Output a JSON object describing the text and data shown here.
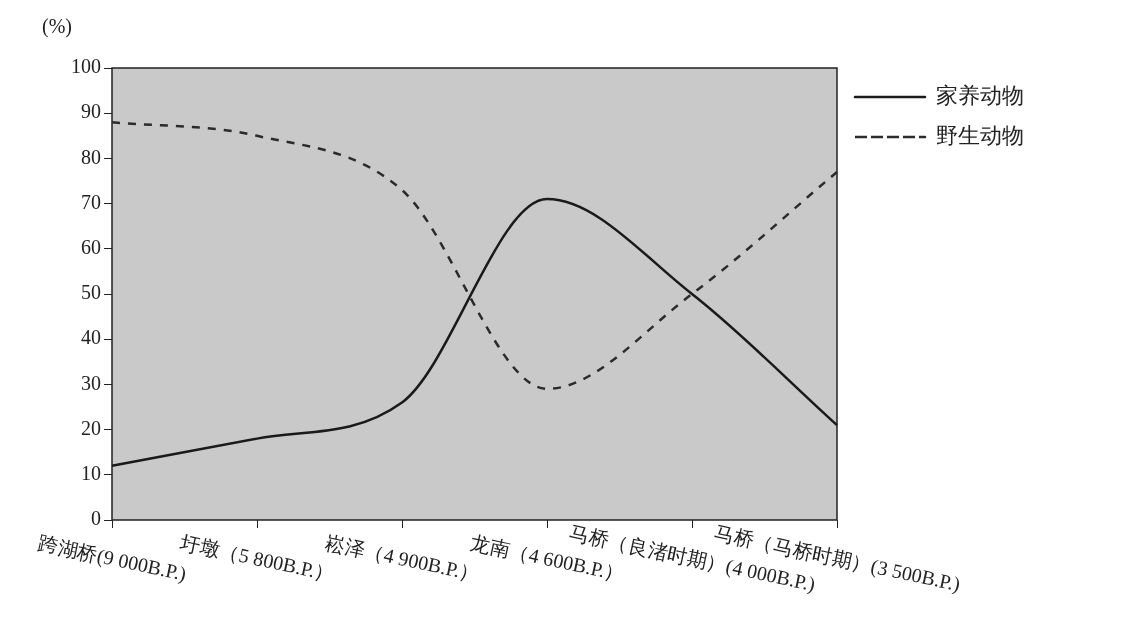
{
  "chart_data": {
    "type": "line",
    "ylabel": "(%)",
    "categories": [
      "跨湖桥(9 000B.P.)",
      "圩墩（5 800B.P.）",
      "崧泽（4 900B.P.）",
      "龙南（4 600B.P.）",
      "马桥（良渚时期）(4 000B.P.)",
      "马桥（马桥时期）(3 500B.P.)"
    ],
    "series": [
      {
        "name": "家养动物",
        "color": "#1a1a1a",
        "line_style": "solid",
        "values": [
          12,
          18,
          26,
          71,
          50,
          21
        ]
      },
      {
        "name": "野生动物",
        "color": "#2b2b2b",
        "line_style": "dashed",
        "values": [
          88,
          85,
          73,
          29,
          50,
          77
        ]
      }
    ],
    "ylim": [
      0,
      100
    ],
    "yticks": [
      0,
      10,
      20,
      30,
      40,
      50,
      60,
      70,
      80,
      90,
      100
    ],
    "grid": false,
    "legend": "top right",
    "marker": "none"
  }
}
